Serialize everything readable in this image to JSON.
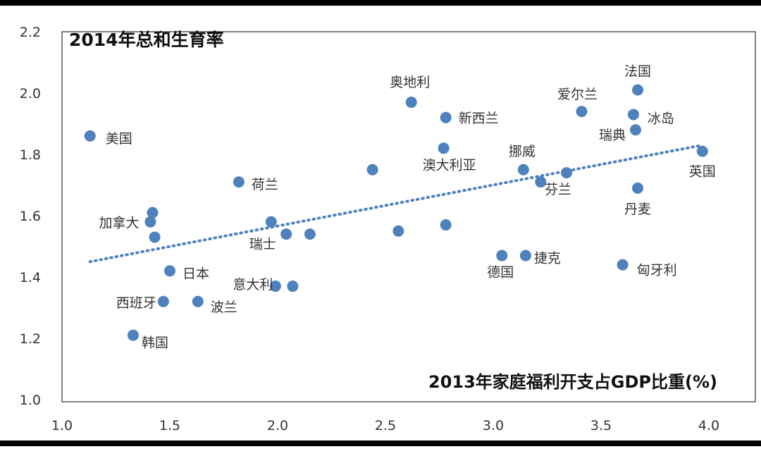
{
  "chart_data": {
    "type": "scatter",
    "ylabel": "2014年总和生育率",
    "xlabel": "2013年家庭福利开支占GDP比重(%)",
    "xlim": [
      1.0,
      4.0
    ],
    "ylim": [
      1.0,
      2.2
    ],
    "x_ticks": [
      "1.0",
      "1.5",
      "2.0",
      "2.5",
      "3.0",
      "3.5",
      "4.0"
    ],
    "y_ticks": [
      "1.0",
      "1.2",
      "1.4",
      "1.6",
      "1.8",
      "2.0",
      "2.2"
    ],
    "grid": false,
    "trendline": {
      "style": "dotted",
      "x": [
        1.13,
        3.97
      ],
      "y": [
        1.45,
        1.83
      ]
    },
    "colors": {
      "marker": "#4F81BD",
      "trend": "#4F81BD",
      "frame": "#000000"
    },
    "points": [
      {
        "label": "美国",
        "x": 1.13,
        "y": 1.86
      },
      {
        "label": "加拿大",
        "x": 1.41,
        "y": 1.58
      },
      {
        "label": "",
        "x": 1.42,
        "y": 1.61
      },
      {
        "label": "",
        "x": 1.43,
        "y": 1.53
      },
      {
        "label": "日本",
        "x": 1.5,
        "y": 1.42
      },
      {
        "label": "西班牙",
        "x": 1.47,
        "y": 1.32
      },
      {
        "label": "韩国",
        "x": 1.33,
        "y": 1.21
      },
      {
        "label": "波兰",
        "x": 1.63,
        "y": 1.32
      },
      {
        "label": "荷兰",
        "x": 1.82,
        "y": 1.71
      },
      {
        "label": "瑞士",
        "x": 1.97,
        "y": 1.58
      },
      {
        "label": "",
        "x": 2.04,
        "y": 1.54
      },
      {
        "label": "",
        "x": 2.15,
        "y": 1.54
      },
      {
        "label": "意大利",
        "x": 1.99,
        "y": 1.37
      },
      {
        "label": "",
        "x": 2.07,
        "y": 1.37
      },
      {
        "label": "",
        "x": 2.44,
        "y": 1.75
      },
      {
        "label": "",
        "x": 2.56,
        "y": 1.55
      },
      {
        "label": "奥地利",
        "x": 2.62,
        "y": 1.97
      },
      {
        "label": "新西兰",
        "x": 2.78,
        "y": 1.92
      },
      {
        "label": "澳大利亚",
        "x": 2.77,
        "y": 1.82
      },
      {
        "label": "",
        "x": 2.78,
        "y": 1.57
      },
      {
        "label": "德国",
        "x": 3.04,
        "y": 1.47
      },
      {
        "label": "捷克",
        "x": 3.15,
        "y": 1.47
      },
      {
        "label": "挪威",
        "x": 3.14,
        "y": 1.75
      },
      {
        "label": "",
        "x": 3.22,
        "y": 1.71
      },
      {
        "label": "芬兰",
        "x": 3.34,
        "y": 1.74
      },
      {
        "label": "爱尔兰",
        "x": 3.41,
        "y": 1.94
      },
      {
        "label": "法国",
        "x": 3.67,
        "y": 2.01
      },
      {
        "label": "冰岛",
        "x": 3.65,
        "y": 1.93
      },
      {
        "label": "瑞典",
        "x": 3.66,
        "y": 1.88
      },
      {
        "label": "丹麦",
        "x": 3.67,
        "y": 1.69
      },
      {
        "label": "匈牙利",
        "x": 3.6,
        "y": 1.44
      },
      {
        "label": "英国",
        "x": 3.97,
        "y": 1.81
      }
    ]
  }
}
